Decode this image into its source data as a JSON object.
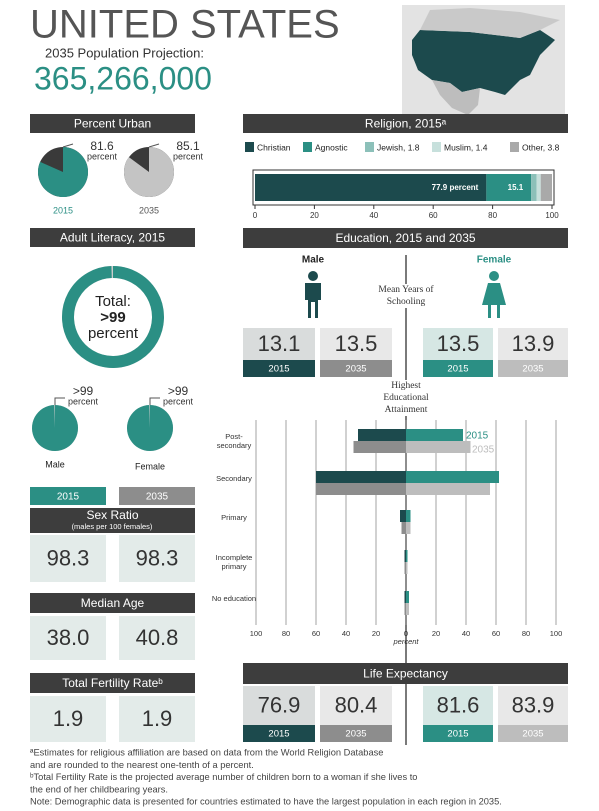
{
  "header": {
    "title": "UNITED STATES",
    "subtitle": "2035 Population Projection:",
    "population": "365,266,000"
  },
  "years": [
    "2015",
    "2035"
  ],
  "percent_urban": {
    "title": "Percent Urban",
    "unit": "percent",
    "type": "pie",
    "items": [
      {
        "year": "2015",
        "value": 81.6,
        "color": "#2b8f84"
      },
      {
        "year": "2035",
        "value": 85.1,
        "color": "#c4c4c4"
      }
    ]
  },
  "religion": {
    "title": "Religion, 2015ᵃ",
    "type": "stacked-bar",
    "xlim": [
      0,
      100
    ],
    "xticks": [
      0,
      20,
      40,
      60,
      80,
      100
    ],
    "series": [
      {
        "name": "Christian",
        "color": "#1c4a4d",
        "values": [
          77.9
        ],
        "value_labels": [
          "77.9 percent"
        ]
      },
      {
        "name": "Agnostic",
        "color": "#2b8f84",
        "values": [
          15.1
        ],
        "value_labels": [
          "15.1"
        ]
      },
      {
        "name": "Jewish, 1.8",
        "color": "#8cc0b9",
        "values": [
          1.8
        ]
      },
      {
        "name": "Muslim, 1.4",
        "color": "#c7e0dc",
        "values": [
          1.4
        ]
      },
      {
        "name": "Other, 3.8",
        "color": "#a9a9a9",
        "values": [
          3.8
        ]
      }
    ]
  },
  "literacy": {
    "title": "Adult Literacy, 2015",
    "total_label": "Total:",
    "unit": "percent",
    "color": "#2b8f84",
    "total": {
      "value": 99.5,
      "label": ">99"
    },
    "items": [
      {
        "name": "Male",
        "value": 99.5,
        "label": ">99"
      },
      {
        "name": "Female",
        "value": 99.5,
        "label": ">99"
      }
    ]
  },
  "sex_ratio": {
    "title": "Sex Ratio",
    "subtitle": "(males per 100 females)",
    "values": [
      98.3,
      98.3
    ]
  },
  "median_age": {
    "title": "Median Age",
    "values": [
      38,
      40.8
    ],
    "value_labels": [
      "38.0",
      "40.8"
    ]
  },
  "fertility": {
    "title": "Total Fertility Rateᵇ",
    "values": [
      1.9,
      1.9
    ]
  },
  "education": {
    "title": "Education, 2015 and 2035",
    "male_label": "Male",
    "female_label": "Female",
    "schooling_label": "Mean Years of Schooling",
    "schooling": {
      "male": [
        13.1,
        13.5
      ],
      "female": [
        13.5,
        13.9
      ]
    },
    "attainment": {
      "title": "Highest Educational Attainment",
      "type": "butterfly",
      "categories": [
        "Post-secondary",
        "Secondary",
        "Primary",
        "Incomplete primary",
        "No education"
      ],
      "xlim": [
        -100,
        100
      ],
      "xticks": [
        {
          "value": -100,
          "label": "100"
        },
        {
          "value": -80,
          "label": "80"
        },
        {
          "value": -60,
          "label": "60"
        },
        {
          "value": -40,
          "label": "40"
        },
        {
          "value": -20,
          "label": "20"
        },
        0,
        20,
        40,
        60,
        80,
        100
      ],
      "xlabel": "percent",
      "series": [
        {
          "name": "2015",
          "male": {
            "color": "#1c4a4d",
            "values": [
              32,
              60,
              4,
              1,
              1
            ]
          },
          "female": {
            "color": "#2b8f84",
            "values": [
              38,
              62,
              3,
              1,
              2
            ]
          }
        },
        {
          "name": "2035",
          "male": {
            "color": "#8d8d8d",
            "values": [
              35,
              60,
              3,
              1,
              1
            ]
          },
          "female": {
            "color": "#bdbdbd",
            "values": [
              43,
              56,
              3,
              1,
              2
            ]
          }
        }
      ]
    }
  },
  "life_expectancy": {
    "title": "Life Expectancy",
    "male": [
      76.9,
      80.4
    ],
    "female": [
      81.6,
      83.9
    ]
  },
  "footnotes": [
    "ªEstimates for religious affiliation are based on data from the World Religion Database",
    "and are rounded to the nearest one-tenth of a percent.",
    "ᵇTotal Fertility Rate is the projected average number of children born to a woman if she lives to",
    "the end of her childbearing years.",
    "Note: Demographic data is presented for countries estimated to have the largest population in each region in 2035."
  ]
}
